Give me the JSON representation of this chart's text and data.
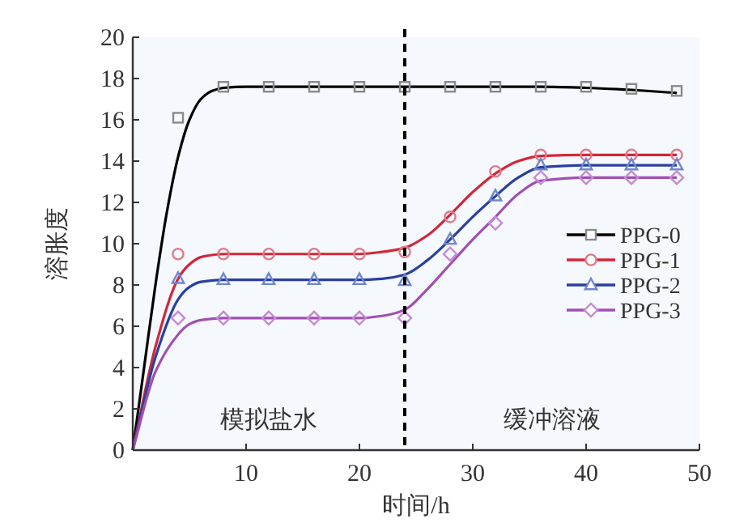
{
  "chart_data": {
    "type": "line",
    "xlabel": "时间/h",
    "ylabel": "溶胀度",
    "xlim": [
      0,
      50
    ],
    "ylim": [
      0,
      20
    ],
    "xticks": [
      10,
      20,
      30,
      40,
      50
    ],
    "yticks": [
      0,
      2,
      4,
      6,
      8,
      10,
      12,
      14,
      16,
      18,
      20
    ],
    "grid": false,
    "legend": "right",
    "ref_lines": [
      {
        "axis": "x",
        "value": 24,
        "color": "#000000",
        "line_style": "dashed"
      }
    ],
    "annotations": [
      "模拟盐水",
      "缓冲溶液"
    ],
    "series": [
      {
        "name": "PPG-0",
        "type": "scatter",
        "color": "#8a8a8a",
        "marker": "square",
        "x": [
          4,
          8,
          12,
          16,
          20,
          24,
          28,
          32,
          36,
          40,
          44,
          48
        ],
        "values": [
          16.1,
          17.6,
          17.6,
          17.6,
          17.6,
          17.6,
          17.6,
          17.6,
          17.6,
          17.6,
          17.5,
          17.4
        ]
      },
      {
        "name": "PPG-1",
        "type": "scatter",
        "color": "#e07a8a",
        "marker": "circle",
        "x": [
          4,
          8,
          12,
          16,
          20,
          24,
          28,
          32,
          36,
          40,
          44,
          48
        ],
        "values": [
          9.5,
          9.5,
          9.5,
          9.5,
          9.5,
          9.6,
          11.3,
          13.5,
          14.3,
          14.3,
          14.3,
          14.3
        ]
      },
      {
        "name": "PPG-2",
        "type": "scatter",
        "color": "#6f86d0",
        "marker": "triangle",
        "x": [
          4,
          8,
          12,
          16,
          20,
          24,
          28,
          32,
          36,
          40,
          44,
          48
        ],
        "values": [
          8.3,
          8.25,
          8.25,
          8.25,
          8.25,
          8.2,
          10.2,
          12.3,
          13.8,
          13.8,
          13.8,
          13.8
        ]
      },
      {
        "name": "PPG-3",
        "type": "scatter",
        "color": "#c58ad2",
        "marker": "diamond",
        "x": [
          4,
          8,
          12,
          16,
          20,
          24,
          28,
          32,
          36,
          40,
          44,
          48
        ],
        "values": [
          6.4,
          6.4,
          6.4,
          6.4,
          6.4,
          6.4,
          9.5,
          11.0,
          13.2,
          13.2,
          13.2,
          13.2
        ]
      },
      {
        "color": "#000000",
        "x": [
          0,
          1,
          2,
          3,
          4,
          5,
          6,
          7,
          8,
          10,
          20,
          30,
          36,
          40,
          44,
          48
        ],
        "values": [
          0,
          4,
          8,
          11.5,
          14.2,
          16,
          17,
          17.4,
          17.55,
          17.6,
          17.6,
          17.6,
          17.6,
          17.55,
          17.45,
          17.3
        ]
      },
      {
        "color": "#d0283a",
        "x": [
          0,
          2,
          4,
          5,
          6,
          8,
          20,
          22,
          24,
          26,
          28,
          30,
          32,
          34,
          36,
          40,
          48
        ],
        "values": [
          0,
          5,
          8.3,
          9,
          9.35,
          9.5,
          9.5,
          9.6,
          9.8,
          10.4,
          11.4,
          12.5,
          13.4,
          14.0,
          14.25,
          14.3,
          14.3
        ]
      },
      {
        "color": "#2a3f9f",
        "x": [
          0,
          2,
          4,
          5,
          6,
          8,
          20,
          22,
          24,
          26,
          28,
          30,
          32,
          34,
          36,
          40,
          48
        ],
        "values": [
          0,
          4.5,
          7.3,
          7.9,
          8.15,
          8.25,
          8.25,
          8.3,
          8.5,
          9.2,
          10.2,
          11.3,
          12.3,
          13.2,
          13.7,
          13.8,
          13.8
        ]
      },
      {
        "color": "#a050b0",
        "x": [
          0,
          2,
          4,
          5,
          6,
          8,
          20,
          22,
          24,
          26,
          28,
          30,
          32,
          34,
          36,
          40,
          48
        ],
        "values": [
          0,
          3.8,
          5.6,
          6.1,
          6.3,
          6.4,
          6.4,
          6.5,
          6.8,
          7.8,
          9.0,
          10.2,
          11.3,
          12.4,
          13.05,
          13.2,
          13.2
        ]
      }
    ]
  }
}
